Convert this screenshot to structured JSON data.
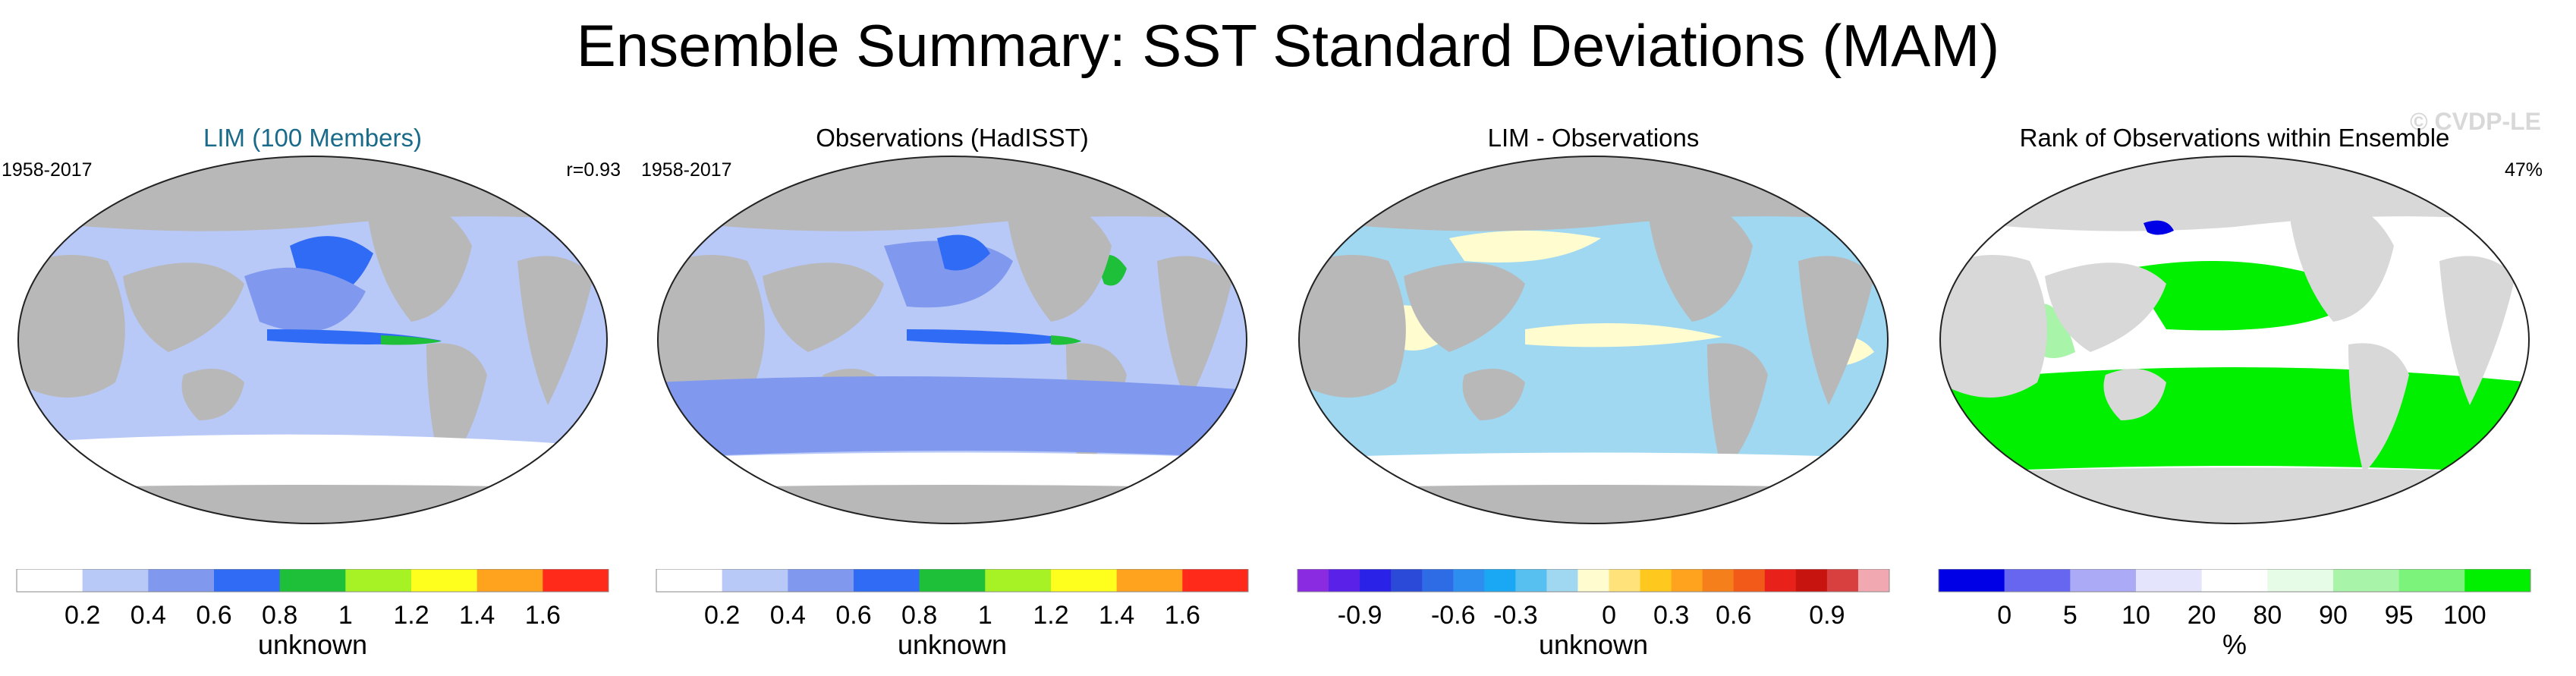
{
  "figure": {
    "title": "Ensemble Summary: SST Standard Deviations (MAM)",
    "watermark": "© CVDP-LE",
    "title_colors": {
      "lim": "#1a6a8a",
      "default": "#000000"
    }
  },
  "panels": [
    {
      "id": "lim",
      "title": "LIM (100 Members)",
      "left_label": "1958-2017",
      "right_label": "r=0.93",
      "icon": "world-map-icon"
    },
    {
      "id": "obs",
      "title": "Observations (HadISST)",
      "left_label": "1958-2017",
      "right_label": "",
      "icon": "world-map-icon"
    },
    {
      "id": "diff",
      "title": "LIM - Observations",
      "left_label": "",
      "right_label": "",
      "icon": "world-map-icon"
    },
    {
      "id": "rank",
      "title": "Rank of Observations within Ensemble",
      "left_label": "",
      "right_label": "47%",
      "icon": "world-map-icon"
    }
  ],
  "colorbars": [
    {
      "id": "cb-lim",
      "unit": "unknown",
      "colors": [
        "#ffffff",
        "#b8c9f7",
        "#8099ef",
        "#2f6bf5",
        "#1ec03a",
        "#a6f225",
        "#ffff1e",
        "#ffa31e",
        "#ff2a1a"
      ],
      "ticks": [
        "0.2",
        "0.4",
        "0.6",
        "0.8",
        "1",
        "1.2",
        "1.4",
        "1.6"
      ]
    },
    {
      "id": "cb-obs",
      "unit": "unknown",
      "colors": [
        "#ffffff",
        "#b8c9f7",
        "#8099ef",
        "#2f6bf5",
        "#1ec03a",
        "#a6f225",
        "#ffff1e",
        "#ffa31e",
        "#ff2a1a"
      ],
      "ticks": [
        "0.2",
        "0.4",
        "0.6",
        "0.8",
        "1",
        "1.2",
        "1.4",
        "1.6"
      ]
    },
    {
      "id": "cb-diff",
      "unit": "unknown",
      "colors": [
        "#8a2be2",
        "#5a22e8",
        "#2a22e6",
        "#2b4ad8",
        "#2e6ce6",
        "#2e8ef0",
        "#1aa8f4",
        "#58c0f0",
        "#a0d8f2",
        "#fffdd0",
        "#ffe27a",
        "#ffc81e",
        "#ffa21e",
        "#f57f1a",
        "#f25a1a",
        "#e8221a",
        "#c8140f",
        "#d84040",
        "#f2a8b0"
      ],
      "ticks": [
        "-0.9",
        "-0.6",
        "-0.3",
        "0",
        "0.3",
        "0.6",
        "0.9"
      ]
    },
    {
      "id": "cb-rank",
      "unit": "%",
      "colors": [
        "#0000e6",
        "#6666f0",
        "#aaaaf6",
        "#e4e4fc",
        "#ffffff",
        "#e6fce6",
        "#a8f4a8",
        "#7cf47c",
        "#00f000"
      ],
      "ticks": [
        "0",
        "5",
        "10",
        "20",
        "80",
        "90",
        "95",
        "100"
      ]
    }
  ]
}
